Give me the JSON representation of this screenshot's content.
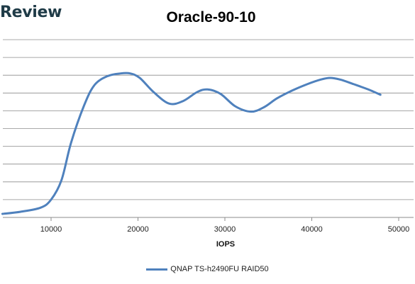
{
  "brand": {
    "name": "Review"
  },
  "chart_data": {
    "type": "line",
    "title": "Oracle-90-10",
    "xlabel": "IOPS",
    "ylabel": "",
    "xlim": [
      4000,
      52000
    ],
    "ylim": [
      0,
      10
    ],
    "x_ticks": [
      10000,
      20000,
      30000,
      40000,
      50000
    ],
    "y_gridlines": 11,
    "grid": true,
    "legend_position": "bottom",
    "series": [
      {
        "name": "QNAP TS-h2490FU RAID50",
        "color": "#4f81bd",
        "x": [
          4400,
          6500,
          8800,
          10000,
          11200,
          12300,
          13800,
          15000,
          16500,
          18000,
          19100,
          20200,
          21800,
          23600,
          25200,
          26800,
          28000,
          29500,
          31200,
          33000,
          34500,
          36000,
          37800,
          39500,
          41000,
          42100,
          43300,
          44800,
          46500,
          47900
        ],
        "values": [
          0.2,
          0.32,
          0.55,
          1.0,
          2.1,
          4.2,
          6.3,
          7.45,
          7.95,
          8.1,
          8.1,
          7.85,
          7.05,
          6.4,
          6.55,
          7.05,
          7.2,
          6.95,
          6.25,
          5.95,
          6.2,
          6.7,
          7.15,
          7.5,
          7.75,
          7.85,
          7.75,
          7.5,
          7.2,
          6.9
        ]
      }
    ]
  }
}
